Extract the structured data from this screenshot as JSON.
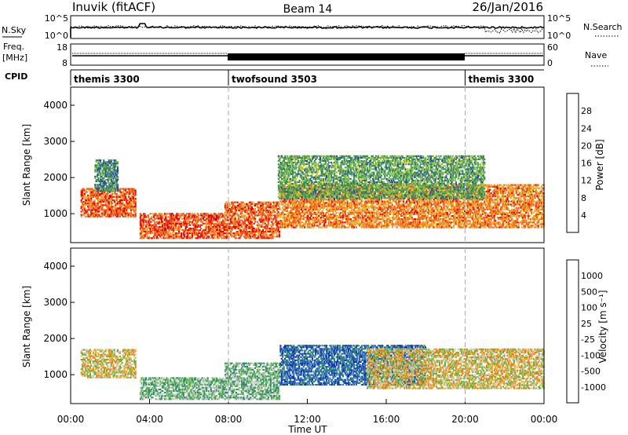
{
  "header": {
    "title": "Inuvik (fitACF)",
    "beam": "Beam 14",
    "date": "26/Jan/2016"
  },
  "summary_panels": {
    "nsky": {
      "label": "N.Sky",
      "tick_top": "10^5",
      "tick_bottom": "10^0"
    },
    "nsearch": {
      "label": "N.Search",
      "tick_top": "10^5",
      "tick_bottom": "10^0"
    },
    "freq": {
      "label_line1": "Freq.",
      "label_line2": "[MHz]",
      "tick_top": "18",
      "tick_bottom": "8"
    },
    "nave": {
      "label": "Nave",
      "tick_top": "60",
      "tick_bottom": "0"
    },
    "cpid": {
      "label": "CPID",
      "segments": [
        {
          "label": "themis 3300",
          "start_hour": 0,
          "end_hour": 8
        },
        {
          "label": "twofsound 3503",
          "start_hour": 8,
          "end_hour": 20
        },
        {
          "label": "themis 3300",
          "start_hour": 20,
          "end_hour": 24
        }
      ]
    }
  },
  "chart_data": [
    {
      "type": "heatmap",
      "name": "power",
      "xlabel": "",
      "ylabel": "Slant Range [km]",
      "xlim": [
        0,
        24
      ],
      "ylim": [
        200,
        4500
      ],
      "y_ticks": [
        "1000",
        "2000",
        "3000",
        "4000"
      ],
      "colorbar": {
        "label": "Power [dB]",
        "ticks": [
          "4",
          "8",
          "12",
          "16",
          "20",
          "24",
          "28"
        ],
        "range": [
          0,
          32
        ],
        "colors": [
          "#0000ff",
          "#2848a8",
          "#3a8a5a",
          "#70b84a",
          "#d8c820",
          "#f49a20",
          "#f05a10",
          "#e80000"
        ]
      },
      "echo_regions": [
        {
          "t0": 0.5,
          "t1": 3.3,
          "r0": 900,
          "r1": 1700,
          "value": 26
        },
        {
          "t0": 1.2,
          "t1": 2.4,
          "r0": 1600,
          "r1": 2500,
          "value": 10
        },
        {
          "t0": 3.5,
          "t1": 7.8,
          "r0": 300,
          "r1": 1000,
          "value": 27
        },
        {
          "t0": 7.8,
          "t1": 10.6,
          "r0": 300,
          "r1": 1300,
          "value": 26
        },
        {
          "t0": 10.6,
          "t1": 24.0,
          "r0": 600,
          "r1": 1800,
          "value": 24
        },
        {
          "t0": 10.5,
          "t1": 21.0,
          "r0": 1400,
          "r1": 2600,
          "value": 12
        }
      ]
    },
    {
      "type": "heatmap",
      "name": "velocity",
      "xlabel": "Time UT",
      "ylabel": "Slant Range [km]",
      "xlim": [
        0,
        24
      ],
      "ylim": [
        200,
        4500
      ],
      "y_ticks": [
        "1000",
        "2000",
        "3000",
        "4000"
      ],
      "x_ticks": [
        "00:00",
        "04:00",
        "08:00",
        "12:00",
        "16:00",
        "20:00",
        "00:00"
      ],
      "colorbar": {
        "label": "Velocity [m s⁻¹]",
        "ticks": [
          "1000",
          "500",
          "100",
          "25",
          "-25",
          "-100",
          "-500",
          "-1000"
        ],
        "colors": [
          "#1030c0",
          "#2d6cb4",
          "#2f8a6e",
          "#5cb84a",
          "#c8c8c8",
          "#f0b020",
          "#f07a10",
          "#e82000",
          "#ff0000"
        ]
      },
      "echo_regions": [
        {
          "t0": 0.5,
          "t1": 3.3,
          "r0": 900,
          "r1": 1700,
          "value": "-100"
        },
        {
          "t0": 3.5,
          "t1": 7.8,
          "r0": 300,
          "r1": 900,
          "value": "100"
        },
        {
          "t0": 7.8,
          "t1": 10.6,
          "r0": 300,
          "r1": 1300,
          "value": "100"
        },
        {
          "t0": 10.6,
          "t1": 18.0,
          "r0": 700,
          "r1": 1800,
          "value": "500"
        },
        {
          "t0": 15.0,
          "t1": 24.0,
          "r0": 600,
          "r1": 1700,
          "value": "-100"
        }
      ]
    }
  ],
  "dashed_time_markers": [
    8,
    20
  ]
}
